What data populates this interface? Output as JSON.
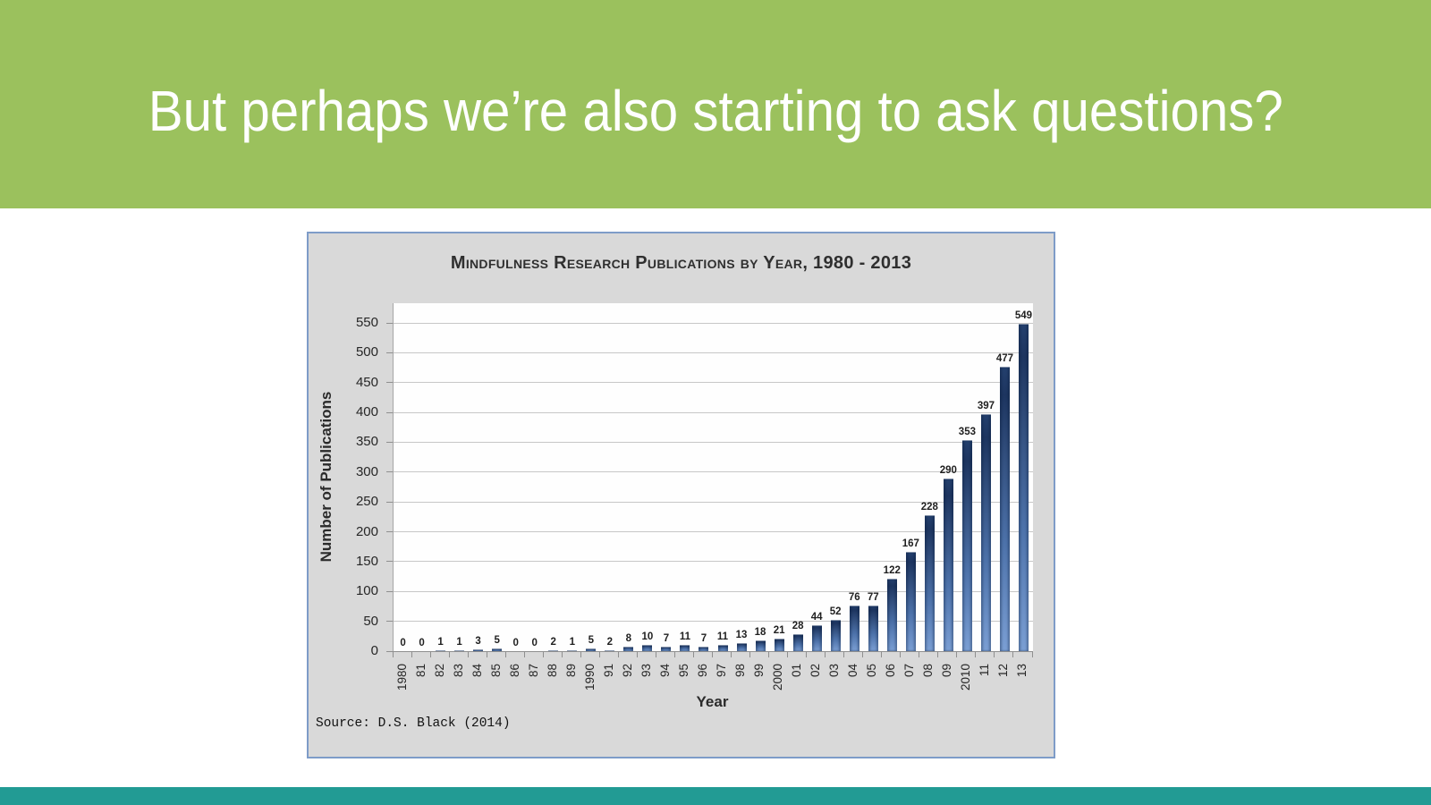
{
  "slide": {
    "title": "But perhaps we’re also starting to ask questions?",
    "banner_color": "#9bc15d",
    "footer_color": "#229b94",
    "background_color": "#ffffff"
  },
  "chart_data": {
    "type": "bar",
    "title": "Mindfulness Research Publications by Year, 1980 - 2013",
    "xlabel": "Year",
    "ylabel": "Number of Publications",
    "source": "Source: D.S. Black (2014)",
    "categories": [
      "1980",
      "81",
      "82",
      "83",
      "84",
      "85",
      "86",
      "87",
      "88",
      "89",
      "1990",
      "91",
      "92",
      "93",
      "94",
      "95",
      "96",
      "97",
      "98",
      "99",
      "2000",
      "01",
      "02",
      "03",
      "04",
      "05",
      "06",
      "07",
      "08",
      "09",
      "2010",
      "11",
      "12",
      "13"
    ],
    "values": [
      0,
      0,
      1,
      1,
      3,
      5,
      0,
      0,
      2,
      1,
      5,
      2,
      8,
      10,
      7,
      11,
      7,
      11,
      13,
      18,
      21,
      28,
      44,
      52,
      76,
      77,
      122,
      167,
      228,
      290,
      353,
      397,
      477,
      549
    ],
    "ylim": [
      0,
      550
    ],
    "ytick_step": 50,
    "grid": true,
    "legend": false,
    "data_labels": true,
    "bar_color_top": "#1d3560",
    "bar_color_bottom": "#7b9fd4",
    "plot_background": "#fefefe",
    "figure_background": "#d9d9d9",
    "figure_border_color": "#7e9cc8"
  }
}
